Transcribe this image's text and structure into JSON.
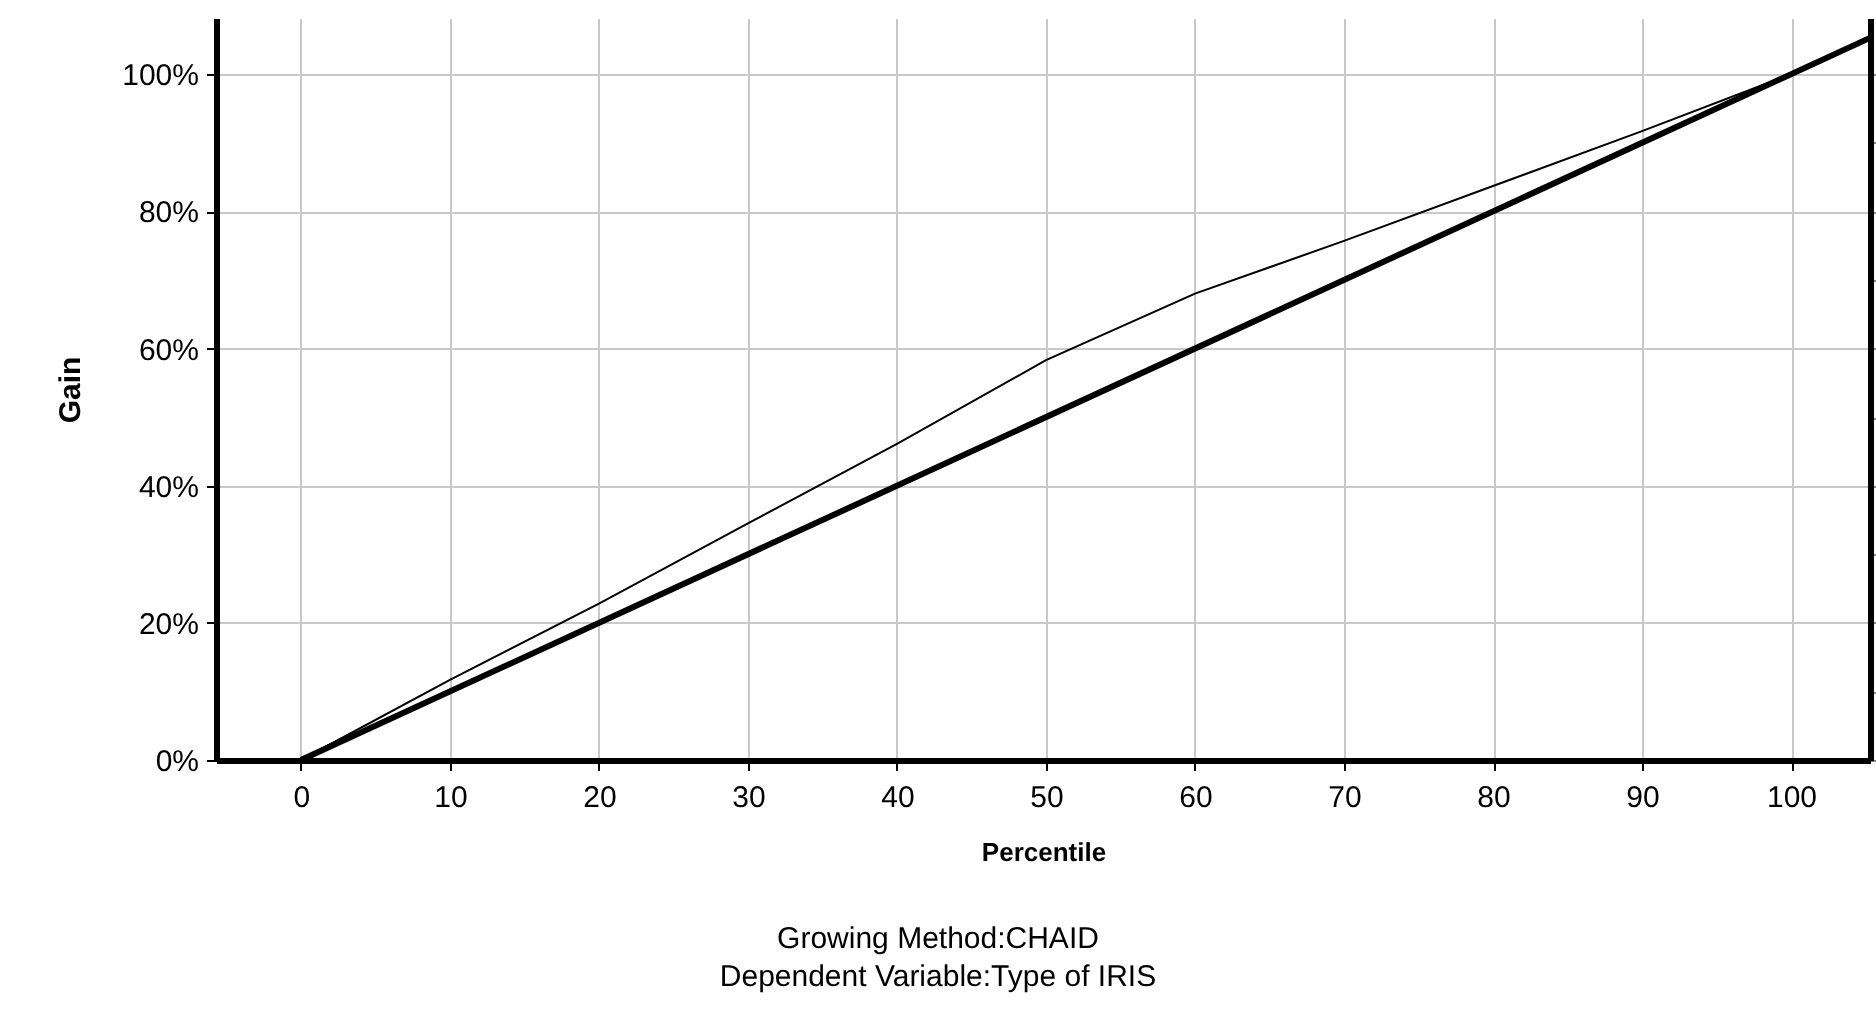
{
  "chart_data": {
    "type": "line",
    "xlabel": "Percentile",
    "ylabel": "Gain",
    "annotations": [
      "Growing Method:CHAID",
      "Dependent Variable:Type of IRIS"
    ],
    "xlim": [
      -5.7,
      105.3
    ],
    "xticks": [
      0,
      10,
      20,
      30,
      40,
      50,
      60,
      70,
      80,
      90,
      100
    ],
    "ylim": [
      0,
      108.2
    ],
    "yticks": [
      {
        "value": 0,
        "label": "0%"
      },
      {
        "value": 20,
        "label": "20%"
      },
      {
        "value": 40,
        "label": "40%"
      },
      {
        "value": 60,
        "label": "60%"
      },
      {
        "value": 80,
        "label": "80%"
      },
      {
        "value": 100,
        "label": "100%"
      }
    ],
    "grid": true,
    "marker": "none",
    "series": [
      {
        "color": "#000000",
        "x": [
          0,
          10,
          20,
          30,
          40,
          50,
          60,
          70,
          80,
          90,
          100
        ],
        "values": [
          0,
          11.7,
          22.8,
          34.5,
          46.1,
          58.3,
          68,
          75.7,
          83.7,
          91.7,
          100
        ]
      },
      {
        "color": "#000000",
        "x": [
          0,
          105.3
        ],
        "values": [
          0,
          105.3
        ]
      }
    ]
  }
}
